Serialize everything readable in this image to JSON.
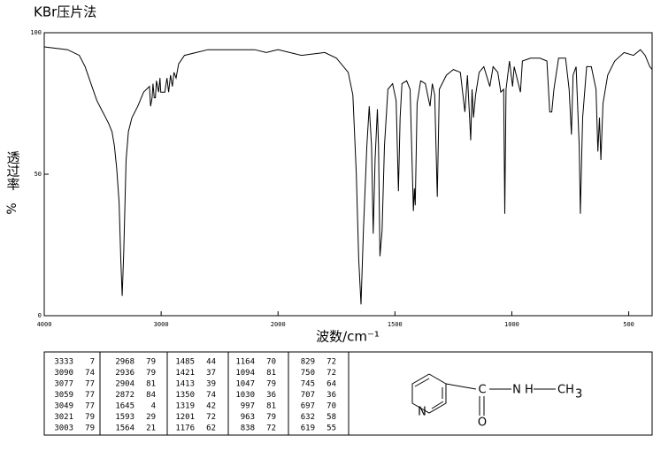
{
  "chart_data": {
    "type": "line",
    "title": "KBr压片法",
    "xlabel": "波数/cm⁻¹",
    "ylabel": "透过率",
    "ylabel_unit": "%",
    "color": "#000000",
    "xlim": [
      4000,
      400
    ],
    "xticks": [
      4000,
      3000,
      2000,
      1500,
      1000,
      500
    ],
    "ylim": [
      0,
      100
    ],
    "yticks": [
      0,
      50,
      100
    ],
    "x": [
      4000,
      3900,
      3800,
      3700,
      3650,
      3600,
      3550,
      3500,
      3450,
      3420,
      3400,
      3380,
      3360,
      3345,
      3333,
      3320,
      3300,
      3280,
      3250,
      3200,
      3150,
      3100,
      3090,
      3077,
      3070,
      3059,
      3049,
      3040,
      3021,
      3010,
      3003,
      2968,
      2950,
      2936,
      2920,
      2904,
      2890,
      2872,
      2850,
      2800,
      2700,
      2600,
      2400,
      2200,
      2100,
      2000,
      1900,
      1800,
      1750,
      1700,
      1680,
      1665,
      1655,
      1645,
      1635,
      1620,
      1610,
      1600,
      1593,
      1585,
      1575,
      1570,
      1564,
      1555,
      1545,
      1530,
      1510,
      1495,
      1485,
      1478,
      1470,
      1450,
      1435,
      1421,
      1417,
      1413,
      1405,
      1390,
      1370,
      1350,
      1340,
      1330,
      1319,
      1310,
      1280,
      1250,
      1220,
      1201,
      1190,
      1176,
      1170,
      1164,
      1155,
      1140,
      1120,
      1094,
      1080,
      1060,
      1047,
      1035,
      1030,
      1025,
      1010,
      997,
      990,
      963,
      955,
      920,
      880,
      850,
      838,
      829,
      820,
      800,
      770,
      755,
      750,
      745,
      738,
      725,
      712,
      707,
      700,
      697,
      680,
      660,
      640,
      632,
      625,
      619,
      610,
      590,
      560,
      520,
      480,
      450,
      430,
      410,
      400
    ],
    "values": [
      95,
      94.5,
      94,
      92,
      88,
      82,
      76,
      72,
      68,
      65,
      60,
      52,
      40,
      20,
      7,
      22,
      55,
      65,
      70,
      74,
      79,
      81,
      74,
      77,
      82,
      77,
      77,
      83,
      79,
      84,
      79,
      79,
      84,
      79,
      85,
      81,
      86,
      84,
      89,
      92,
      93,
      94,
      94,
      94,
      93,
      94,
      92,
      93,
      91,
      86,
      78,
      50,
      20,
      4,
      30,
      60,
      74,
      60,
      29,
      55,
      73,
      60,
      21,
      30,
      60,
      80,
      82,
      76,
      44,
      70,
      82,
      83,
      80,
      37,
      45,
      39,
      75,
      83,
      82,
      74,
      82,
      78,
      42,
      80,
      85,
      87,
      86,
      72,
      85,
      62,
      80,
      70,
      78,
      86,
      88,
      81,
      88,
      86,
      79,
      80,
      36,
      80,
      90,
      81,
      88,
      79,
      90,
      91,
      91,
      90,
      72,
      72,
      80,
      91,
      91,
      80,
      72,
      64,
      85,
      88,
      60,
      36,
      60,
      70,
      88,
      88,
      80,
      58,
      70,
      55,
      75,
      85,
      90,
      93,
      92,
      94,
      92,
      88,
      87
    ]
  },
  "peak_table": {
    "rows": [
      [
        3333,
        7,
        2968,
        79,
        1485,
        44,
        1164,
        70,
        829,
        72
      ],
      [
        3090,
        74,
        2936,
        79,
        1421,
        37,
        1094,
        81,
        750,
        72
      ],
      [
        3077,
        77,
        2904,
        81,
        1413,
        39,
        1047,
        79,
        745,
        64
      ],
      [
        3059,
        77,
        2872,
        84,
        1350,
        74,
        1030,
        36,
        707,
        36
      ],
      [
        3049,
        77,
        1645,
        4,
        1319,
        42,
        997,
        81,
        697,
        70
      ],
      [
        3021,
        79,
        1593,
        29,
        1201,
        72,
        963,
        79,
        632,
        58
      ],
      [
        3003,
        79,
        1564,
        21,
        1176,
        62,
        838,
        72,
        619,
        55
      ]
    ]
  },
  "structure": {
    "labels": [
      "N",
      "C",
      "O",
      "N H",
      "CH",
      "3"
    ]
  }
}
